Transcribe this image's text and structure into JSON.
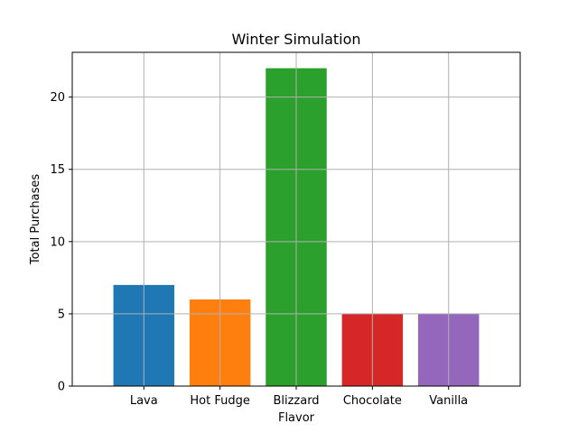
{
  "chart_data": {
    "type": "bar",
    "title": "Winter Simulation",
    "xlabel": "Flavor",
    "ylabel": "Total Purchases",
    "categories": [
      "Lava",
      "Hot Fudge",
      "Blizzard",
      "Chocolate",
      "Vanilla"
    ],
    "values": [
      7,
      6,
      22,
      5,
      5
    ],
    "colors": [
      "#1f77b4",
      "#ff7f0e",
      "#2ca02c",
      "#d62728",
      "#9467bd"
    ],
    "ylim": [
      0,
      23.1
    ],
    "yticks": [
      0,
      5,
      10,
      15,
      20
    ],
    "grid": true,
    "legend": "none"
  }
}
